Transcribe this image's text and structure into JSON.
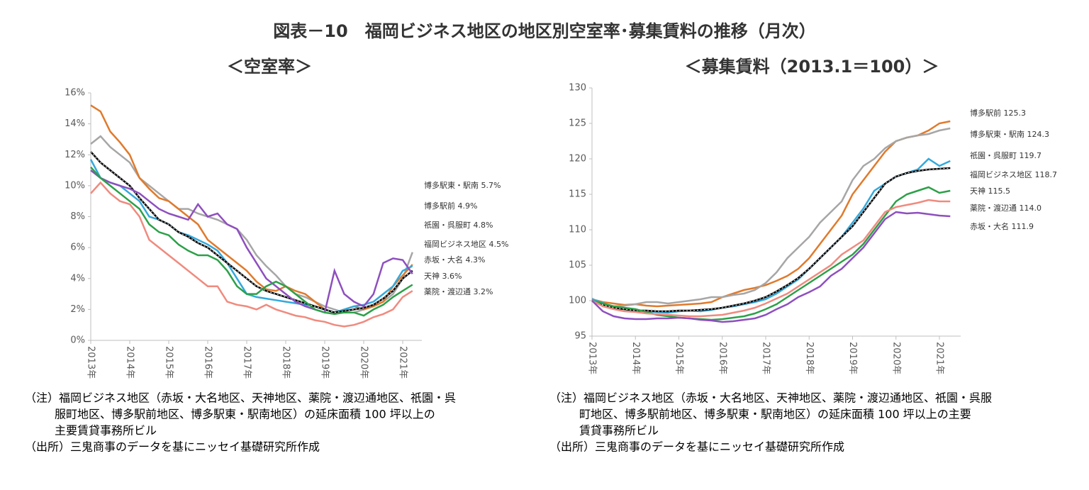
{
  "title": "図表－10　福岡ビジネス地区の地区別空室率･募集賃料の推移（月次）",
  "chart_data": [
    {
      "type": "line",
      "title": "＜空室率＞",
      "categories": [
        "2013年",
        null,
        null,
        null,
        "2014年",
        null,
        null,
        null,
        "2015年",
        null,
        null,
        null,
        "2016年",
        null,
        null,
        null,
        "2017年",
        null,
        null,
        null,
        "2018年",
        null,
        null,
        null,
        "2019年",
        null,
        null,
        null,
        "2020年",
        null,
        null,
        null,
        "2021年",
        null
      ],
      "ylim": [
        0,
        16
      ],
      "yticks": [
        {
          "value": 0,
          "label": "0%"
        },
        {
          "value": 2,
          "label": "2%"
        },
        {
          "value": 4,
          "label": "4%"
        },
        {
          "value": 6,
          "label": "6%"
        },
        {
          "value": 8,
          "label": "8%"
        },
        {
          "value": 10,
          "label": "10%"
        },
        {
          "value": 12,
          "label": "12%"
        },
        {
          "value": 14,
          "label": "14%"
        },
        {
          "value": 16,
          "label": "16%"
        }
      ],
      "series": [
        {
          "name": "博多駅東・駅南 5.7%",
          "color": "#a6a6a6",
          "values": [
            12.7,
            13.2,
            12.5,
            12.0,
            11.5,
            10.5,
            10,
            9.5,
            9,
            8.5,
            8.5,
            8.2,
            8,
            7.8,
            7.5,
            7.2,
            6.5,
            5.5,
            4.8,
            4.2,
            3.5,
            3.0,
            2.8,
            2.5,
            2.2,
            2.0,
            1.8,
            1.8,
            2.0,
            2.2,
            2.5,
            3.0,
            4.0,
            5.7
          ]
        },
        {
          "name": "博多駅前 4.9%",
          "color": "#e07a2c",
          "values": [
            15.2,
            14.8,
            13.5,
            12.8,
            12,
            10.5,
            9.8,
            9.2,
            9,
            8.5,
            8,
            7.5,
            6.5,
            6,
            5.5,
            5,
            4.5,
            3.8,
            3.3,
            3.2,
            3.5,
            3.2,
            3.0,
            2.5,
            2.0,
            1.8,
            2.0,
            2.2,
            2.0,
            2.2,
            2.5,
            3.5,
            4.2,
            4.9
          ]
        },
        {
          "name": "祇園・呉服町 4.8%",
          "color": "#33a9dc",
          "values": [
            11.7,
            10.5,
            10.2,
            10.0,
            9.5,
            9.0,
            8.0,
            7.8,
            7.5,
            7.0,
            6.8,
            6.5,
            6.2,
            5.8,
            5.0,
            4.0,
            3.0,
            2.8,
            2.7,
            2.6,
            2.5,
            2.4,
            2.3,
            2.2,
            2.0,
            1.8,
            2.0,
            2.2,
            2.3,
            2.5,
            3.0,
            3.5,
            4.5,
            4.8
          ]
        },
        {
          "name": "福岡ビジネス地区 4.5%",
          "color": "#000000",
          "values": [
            12.2,
            11.5,
            11,
            10.5,
            10,
            9.2,
            8.5,
            7.8,
            7.5,
            7.0,
            6.7,
            6.3,
            6.0,
            5.5,
            5.0,
            4.5,
            4.0,
            3.5,
            3.2,
            3.0,
            2.8,
            2.6,
            2.4,
            2.2,
            2.0,
            1.8,
            1.9,
            2.0,
            2.1,
            2.3,
            2.7,
            3.2,
            4.0,
            4.5
          ]
        },
        {
          "name": "赤坂・大名 4.3%",
          "color": "#8e4fbf",
          "values": [
            11.0,
            10.5,
            10.2,
            10.0,
            9.8,
            9.5,
            9.0,
            8.5,
            8.2,
            8.0,
            7.8,
            8.8,
            8.0,
            8.2,
            7.5,
            7.2,
            6.0,
            5.0,
            4.0,
            3.5,
            3.0,
            2.5,
            2.2,
            2.0,
            1.8,
            4.5,
            3.0,
            2.5,
            2.2,
            3.0,
            5.0,
            5.3,
            5.2,
            4.3
          ]
        },
        {
          "name": "天神 3.6%",
          "color": "#2ca048",
          "values": [
            11.2,
            10.5,
            10.0,
            9.5,
            9.0,
            8.5,
            7.5,
            7.0,
            6.8,
            6.2,
            5.8,
            5.5,
            5.5,
            5.2,
            4.5,
            3.5,
            3.0,
            3.0,
            3.5,
            3.8,
            3.5,
            3.0,
            2.5,
            2.0,
            1.8,
            1.7,
            1.8,
            1.8,
            1.6,
            2.0,
            2.3,
            2.8,
            3.2,
            3.6
          ]
        },
        {
          "name": "薬院・渡辺通 3.2%",
          "color": "#f08a7e",
          "values": [
            9.5,
            10.2,
            9.5,
            9.0,
            8.8,
            8.0,
            6.5,
            6.0,
            5.5,
            5.0,
            4.5,
            4.0,
            3.5,
            3.5,
            2.5,
            2.3,
            2.2,
            2.0,
            2.3,
            2.0,
            1.8,
            1.6,
            1.5,
            1.3,
            1.2,
            1.0,
            0.9,
            1.0,
            1.2,
            1.5,
            1.7,
            2.0,
            2.8,
            3.2
          ]
        }
      ],
      "notes": [
        "（注）福岡ビジネス地区（赤坂・大名地区、天神地区、薬院・渡辺通地区、祇園・呉",
        "服町地区、博多駅前地区、博多駅東・駅南地区）の延床面積 100 坪以上の",
        "主要賃貸事務所ビル",
        "（出所）三鬼商事のデータを基にニッセイ基礎研究所作成"
      ]
    },
    {
      "type": "line",
      "title": "＜募集賃料（2013.1＝100）＞",
      "categories": [
        "2013年",
        null,
        null,
        null,
        "2014年",
        null,
        null,
        null,
        "2015年",
        null,
        null,
        null,
        "2016年",
        null,
        null,
        null,
        "2017年",
        null,
        null,
        null,
        "2018年",
        null,
        null,
        null,
        "2019年",
        null,
        null,
        null,
        "2020年",
        null,
        null,
        null,
        "2021年",
        null
      ],
      "ylim": [
        95,
        130
      ],
      "yticks": [
        95,
        100,
        105,
        110,
        115,
        120,
        125,
        130
      ],
      "series": [
        {
          "name": "博多駅前 125.3",
          "color": "#e07a2c",
          "values": [
            100.2,
            99.8,
            99.6,
            99.4,
            99.5,
            99.3,
            99.2,
            99.3,
            99.4,
            99.5,
            99.6,
            99.8,
            100.5,
            101.0,
            101.5,
            101.8,
            102.2,
            102.8,
            103.5,
            104.5,
            106,
            108,
            110,
            112,
            115,
            117,
            119,
            121,
            122.5,
            123,
            123.3,
            124,
            125,
            125.3
          ]
        },
        {
          "name": "博多駅東・駅南 124.3",
          "color": "#a6a6a6",
          "values": [
            100.3,
            99.5,
            99.2,
            99.3,
            99.5,
            99.8,
            99.8,
            99.6,
            99.8,
            100.0,
            100.2,
            100.5,
            100.5,
            100.8,
            101.0,
            101.5,
            102.5,
            104,
            106,
            107.5,
            109,
            111,
            112.5,
            114,
            117,
            119,
            120,
            121.5,
            122.5,
            123,
            123.3,
            123.5,
            124,
            124.3
          ]
        },
        {
          "name": "祇園・呉服町 119.7",
          "color": "#33a9dc",
          "values": [
            100.2,
            99.7,
            99.0,
            98.8,
            98.6,
            98.5,
            98.4,
            98.3,
            98.5,
            98.6,
            98.5,
            98.7,
            99.0,
            99.2,
            99.5,
            99.8,
            100.2,
            101,
            102,
            103,
            104.5,
            106,
            107.5,
            109,
            111,
            113,
            115.5,
            116.5,
            117.5,
            118,
            118.5,
            120,
            119,
            119.7
          ]
        },
        {
          "name": "福岡ビジネス地区 118.7",
          "color": "#000000",
          "values": [
            100,
            99.4,
            99.0,
            98.8,
            98.6,
            98.6,
            98.5,
            98.5,
            98.6,
            98.6,
            98.7,
            98.8,
            99.0,
            99.3,
            99.6,
            100,
            100.5,
            101.3,
            102.2,
            103.2,
            104.5,
            106,
            107.5,
            109,
            110.5,
            112.5,
            114.5,
            116.5,
            117.5,
            118,
            118.3,
            118.5,
            118.6,
            118.7
          ]
        },
        {
          "name": "天神 115.5",
          "color": "#2ca048",
          "values": [
            100,
            99.6,
            99.2,
            99,
            98.8,
            98.4,
            98.0,
            97.8,
            97.6,
            97.5,
            97.4,
            97.3,
            97.4,
            97.6,
            97.8,
            98.2,
            98.8,
            99.5,
            100.5,
            101.5,
            102.5,
            103.5,
            104.5,
            105.5,
            106.5,
            108,
            110,
            112,
            114,
            115,
            115.5,
            116,
            115.2,
            115.5
          ]
        },
        {
          "name": "薬院・渡辺通 114.0",
          "color": "#f08a7e",
          "values": [
            100,
            99.2,
            98.8,
            98.5,
            98.4,
            98.2,
            98.1,
            98.0,
            97.9,
            97.8,
            97.8,
            97.9,
            98.0,
            98.3,
            98.6,
            99.0,
            99.6,
            100.3,
            101,
            102,
            103,
            104,
            105,
            106.5,
            107.5,
            108.5,
            110.5,
            112.5,
            113.2,
            113.5,
            113.8,
            114.2,
            114.0,
            114.0
          ]
        },
        {
          "name": "赤坂・大名 111.9",
          "color": "#8e4fbf",
          "values": [
            100,
            98.5,
            97.8,
            97.5,
            97.4,
            97.4,
            97.5,
            97.5,
            97.6,
            97.5,
            97.3,
            97.2,
            97.0,
            97.1,
            97.3,
            97.5,
            98.0,
            98.8,
            99.5,
            100.5,
            101.2,
            102,
            103.5,
            104.5,
            106,
            107.5,
            109.5,
            111.5,
            112.5,
            112.3,
            112.4,
            112.2,
            112.0,
            111.9
          ]
        }
      ],
      "notes": [
        "（注）福岡ビジネス地区（赤坂・大名地区、天神地区、薬院・渡辺通地区、祇園・呉服",
        "町地区、博多駅前地区、博多駅東・駅南地区）の延床面積 100 坪以上の主要",
        "賃貸事務所ビル",
        "（出所）三鬼商事のデータを基にニッセイ基礎研究所作成"
      ]
    }
  ]
}
